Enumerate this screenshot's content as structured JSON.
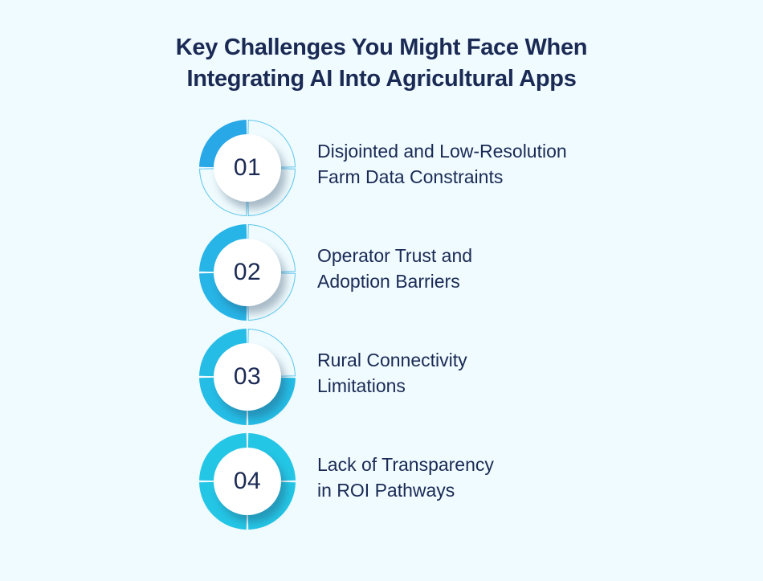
{
  "title": {
    "line1": "Key Challenges You Might Face When",
    "line2": "Integrating AI Into Agricultural Apps"
  },
  "colors": {
    "background": "#effbfe",
    "text": "#1b2a55",
    "ring_outline": "#5ec6ee"
  },
  "steps": [
    {
      "number": "01",
      "line1": "Disjointed and Low-Resolution",
      "line2": "Farm Data Constraints",
      "filled_quadrants": [
        "top-left"
      ],
      "color": "#29a8e8"
    },
    {
      "number": "02",
      "line1": "Operator Trust and",
      "line2": "Adoption Barriers",
      "filled_quadrants": [
        "top-left",
        "bottom-left"
      ],
      "color": "#27b4e6"
    },
    {
      "number": "03",
      "line1": "Rural Connectivity",
      "line2": "Limitations",
      "filled_quadrants": [
        "top-left",
        "bottom-left",
        "bottom-right"
      ],
      "color": "#25bde6"
    },
    {
      "number": "04",
      "line1": "Lack of Transparency",
      "line2": "in ROI Pathways",
      "filled_quadrants": [
        "top-left",
        "bottom-left",
        "bottom-right",
        "top-right"
      ],
      "color": "#24c6e6"
    }
  ]
}
